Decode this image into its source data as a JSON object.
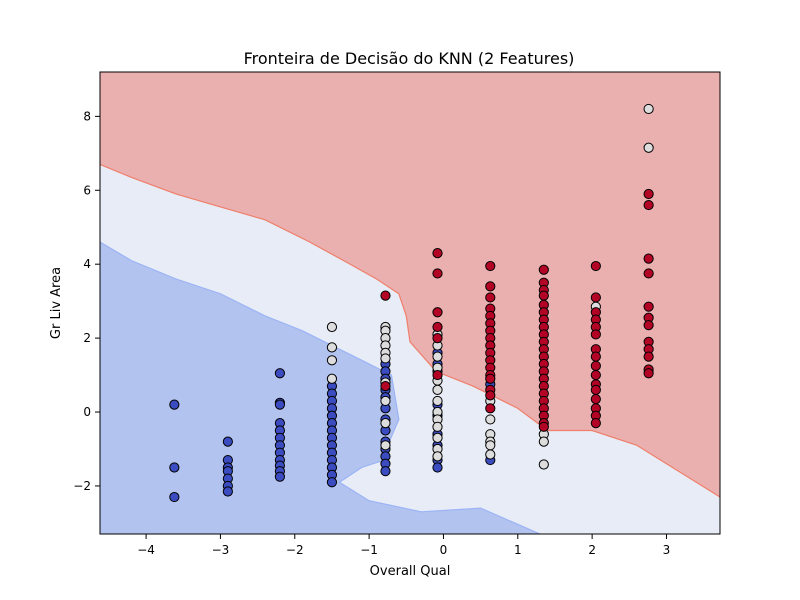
{
  "chart_data": {
    "type": "scatter",
    "title": "Fronteira de Decisão do KNN (2 Features)",
    "xlabel": "Overall Qual",
    "ylabel": "Gr Liv Area",
    "xlim": [
      -4.62,
      3.72
    ],
    "ylim": [
      -3.3,
      9.2
    ],
    "xticks": [
      -4,
      -3,
      -2,
      -1,
      0,
      1,
      2,
      3
    ],
    "yticks": [
      -2,
      0,
      2,
      4,
      6,
      8
    ],
    "xtick_labels": [
      "−4",
      "−3",
      "−2",
      "−1",
      "0",
      "1",
      "2",
      "3"
    ],
    "ytick_labels": [
      "−2",
      "0",
      "2",
      "4",
      "6",
      "8"
    ],
    "grid": false,
    "legend": "none",
    "colors": {
      "low": "#3b4cc0",
      "mid": "#dddddd",
      "high": "#b40426",
      "region_low": "#b3c3f0",
      "region_mid": "#e8ecf6",
      "region_high": "#eab0b0",
      "edge_low": "#9bb4f5",
      "edge_high": "#ef7f6a"
    },
    "decision_regions": {
      "high_boundary": [
        [
          -4.62,
          6.7
        ],
        [
          -4.2,
          6.35
        ],
        [
          -3.6,
          5.9
        ],
        [
          -3.0,
          5.55
        ],
        [
          -2.4,
          5.2
        ],
        [
          -1.8,
          4.6
        ],
        [
          -1.3,
          4.05
        ],
        [
          -0.9,
          3.6
        ],
        [
          -0.6,
          3.2
        ],
        [
          -0.5,
          2.6
        ],
        [
          -0.45,
          1.9
        ],
        [
          -0.1,
          1.1
        ],
        [
          0.4,
          0.7
        ],
        [
          1.0,
          0.1
        ],
        [
          1.4,
          -0.5
        ],
        [
          2.0,
          -0.5
        ],
        [
          2.6,
          -0.9
        ],
        [
          3.72,
          -2.3
        ]
      ],
      "low_boundary": [
        [
          -4.62,
          4.6
        ],
        [
          -4.2,
          4.1
        ],
        [
          -3.6,
          3.6
        ],
        [
          -3.0,
          3.2
        ],
        [
          -2.4,
          2.6
        ],
        [
          -1.9,
          2.2
        ],
        [
          -1.6,
          1.9
        ],
        [
          -1.2,
          1.5
        ],
        [
          -0.7,
          1.0
        ],
        [
          -0.6,
          -0.2
        ],
        [
          -0.75,
          -0.9
        ],
        [
          -0.8,
          -1.3
        ],
        [
          -1.1,
          -1.5
        ],
        [
          -1.4,
          -1.9
        ],
        [
          -1.0,
          -2.4
        ],
        [
          -0.3,
          -2.7
        ],
        [
          0.5,
          -2.6
        ],
        [
          1.3,
          -3.3
        ]
      ]
    },
    "series": [
      {
        "class": "low",
        "points": [
          [
            -3.62,
            0.2
          ],
          [
            -3.62,
            -1.5
          ],
          [
            -3.62,
            -2.3
          ],
          [
            -2.9,
            -0.8
          ],
          [
            -2.9,
            -1.3
          ],
          [
            -2.9,
            -1.5
          ],
          [
            -2.9,
            -1.6
          ],
          [
            -2.9,
            -1.8
          ],
          [
            -2.9,
            -2.0
          ],
          [
            -2.9,
            -2.15
          ],
          [
            -2.2,
            1.05
          ],
          [
            -2.2,
            0.25
          ],
          [
            -2.2,
            0.2
          ],
          [
            -2.2,
            -0.3
          ],
          [
            -2.2,
            -0.5
          ],
          [
            -2.2,
            -0.7
          ],
          [
            -2.2,
            -0.9
          ],
          [
            -2.2,
            -1.1
          ],
          [
            -2.2,
            -1.3
          ],
          [
            -2.2,
            -1.45
          ],
          [
            -2.2,
            -1.6
          ],
          [
            -2.2,
            -1.75
          ],
          [
            -1.5,
            0.7
          ],
          [
            -1.5,
            0.5
          ],
          [
            -1.5,
            0.3
          ],
          [
            -1.5,
            0.1
          ],
          [
            -1.5,
            -0.1
          ],
          [
            -1.5,
            -0.3
          ],
          [
            -1.5,
            -0.5
          ],
          [
            -1.5,
            -0.7
          ],
          [
            -1.5,
            -0.9
          ],
          [
            -1.5,
            -1.1
          ],
          [
            -1.5,
            -1.3
          ],
          [
            -1.5,
            -1.5
          ],
          [
            -1.5,
            -1.7
          ],
          [
            -1.5,
            -1.9
          ],
          [
            -0.78,
            1.3
          ],
          [
            -0.78,
            1.1
          ],
          [
            -0.78,
            0.9
          ],
          [
            -0.78,
            0.6
          ],
          [
            -0.78,
            0.4
          ],
          [
            -0.78,
            0.1
          ],
          [
            -0.78,
            -0.2
          ],
          [
            -0.78,
            -0.5
          ],
          [
            -0.78,
            -0.8
          ],
          [
            -0.78,
            -1.0
          ],
          [
            -0.78,
            -1.2
          ],
          [
            -0.78,
            -1.4
          ],
          [
            -0.78,
            -1.6
          ],
          [
            -0.08,
            1.6
          ],
          [
            -0.08,
            1.3
          ],
          [
            -0.08,
            1.1
          ],
          [
            -0.08,
            0.2
          ],
          [
            -0.08,
            -0.1
          ],
          [
            -0.08,
            -0.6
          ],
          [
            -0.08,
            -0.9
          ],
          [
            -0.08,
            -1.3
          ],
          [
            -0.08,
            -1.5
          ],
          [
            0.63,
            0.75
          ],
          [
            0.63,
            -1.3
          ]
        ]
      },
      {
        "class": "mid",
        "points": [
          [
            -1.5,
            2.3
          ],
          [
            -1.5,
            1.75
          ],
          [
            -1.5,
            1.4
          ],
          [
            -1.5,
            0.9
          ],
          [
            -0.78,
            2.3
          ],
          [
            -0.78,
            2.2
          ],
          [
            -0.78,
            2.0
          ],
          [
            -0.78,
            1.8
          ],
          [
            -0.78,
            1.6
          ],
          [
            -0.78,
            1.45
          ],
          [
            -0.78,
            0.8
          ],
          [
            -0.78,
            0.3
          ],
          [
            -0.78,
            -0.3
          ],
          [
            -0.78,
            -0.9
          ],
          [
            -0.08,
            2.1
          ],
          [
            -0.08,
            1.8
          ],
          [
            -0.08,
            1.5
          ],
          [
            -0.08,
            1.2
          ],
          [
            -0.08,
            0.85
          ],
          [
            -0.08,
            0.6
          ],
          [
            -0.08,
            0.3
          ],
          [
            -0.08,
            0.0
          ],
          [
            -0.08,
            -0.2
          ],
          [
            -0.08,
            -0.4
          ],
          [
            -0.08,
            -0.7
          ],
          [
            -0.08,
            -1.0
          ],
          [
            -0.08,
            -1.2
          ],
          [
            0.63,
            0.3
          ],
          [
            0.63,
            -0.2
          ],
          [
            0.63,
            -0.6
          ],
          [
            0.63,
            -0.8
          ],
          [
            0.63,
            -0.9
          ],
          [
            0.63,
            -1.15
          ],
          [
            1.35,
            -0.6
          ],
          [
            1.35,
            -0.8
          ],
          [
            1.35,
            -1.42
          ],
          [
            2.05,
            2.85
          ],
          [
            2.76,
            8.2
          ],
          [
            2.76,
            7.15
          ]
        ]
      },
      {
        "class": "high",
        "points": [
          [
            -0.08,
            4.3
          ],
          [
            -0.08,
            3.75
          ],
          [
            -0.08,
            2.7
          ],
          [
            -0.08,
            2.3
          ],
          [
            -0.08,
            2.0
          ],
          [
            -0.08,
            1.0
          ],
          [
            -0.78,
            3.15
          ],
          [
            -0.78,
            0.7
          ],
          [
            0.63,
            3.95
          ],
          [
            0.63,
            3.4
          ],
          [
            0.63,
            3.1
          ],
          [
            0.63,
            2.8
          ],
          [
            0.63,
            2.6
          ],
          [
            0.63,
            2.4
          ],
          [
            0.63,
            2.2
          ],
          [
            0.63,
            2.0
          ],
          [
            0.63,
            1.8
          ],
          [
            0.63,
            1.6
          ],
          [
            0.63,
            1.4
          ],
          [
            0.63,
            1.2
          ],
          [
            0.63,
            1.0
          ],
          [
            0.63,
            0.9
          ],
          [
            0.63,
            0.6
          ],
          [
            0.63,
            0.45
          ],
          [
            0.63,
            0.1
          ],
          [
            1.35,
            3.85
          ],
          [
            1.35,
            3.5
          ],
          [
            1.35,
            3.3
          ],
          [
            1.35,
            3.15
          ],
          [
            1.35,
            2.9
          ],
          [
            1.35,
            2.7
          ],
          [
            1.35,
            2.5
          ],
          [
            1.35,
            2.3
          ],
          [
            1.35,
            2.1
          ],
          [
            1.35,
            1.9
          ],
          [
            1.35,
            1.7
          ],
          [
            1.35,
            1.5
          ],
          [
            1.35,
            1.3
          ],
          [
            1.35,
            1.1
          ],
          [
            1.35,
            0.9
          ],
          [
            1.35,
            0.7
          ],
          [
            1.35,
            0.5
          ],
          [
            1.35,
            0.3
          ],
          [
            1.35,
            0.1
          ],
          [
            1.35,
            -0.1
          ],
          [
            1.35,
            -0.3
          ],
          [
            1.35,
            -0.4
          ],
          [
            2.05,
            3.95
          ],
          [
            2.05,
            3.1
          ],
          [
            2.05,
            2.7
          ],
          [
            2.05,
            2.5
          ],
          [
            2.05,
            2.3
          ],
          [
            2.05,
            2.1
          ],
          [
            2.05,
            1.7
          ],
          [
            2.05,
            1.5
          ],
          [
            2.05,
            1.25
          ],
          [
            2.05,
            1.0
          ],
          [
            2.05,
            0.75
          ],
          [
            2.05,
            0.6
          ],
          [
            2.05,
            0.35
          ],
          [
            2.05,
            0.1
          ],
          [
            2.05,
            -0.1
          ],
          [
            2.05,
            -0.3
          ],
          [
            2.76,
            5.9
          ],
          [
            2.76,
            5.6
          ],
          [
            2.76,
            4.15
          ],
          [
            2.76,
            3.75
          ],
          [
            2.76,
            2.85
          ],
          [
            2.76,
            2.55
          ],
          [
            2.76,
            2.35
          ],
          [
            2.76,
            1.9
          ],
          [
            2.76,
            1.7
          ],
          [
            2.76,
            1.5
          ],
          [
            2.76,
            1.15
          ],
          [
            2.76,
            1.05
          ]
        ]
      }
    ]
  }
}
